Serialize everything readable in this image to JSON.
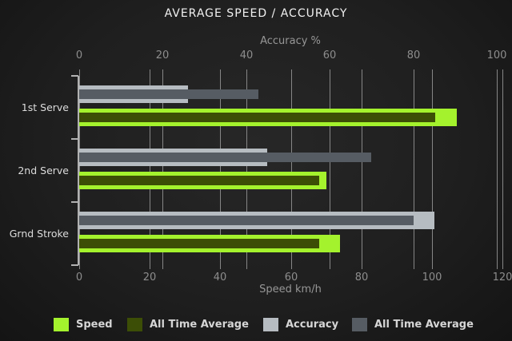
{
  "chart_data": {
    "type": "bar",
    "orientation": "horizontal",
    "title": "AVERAGE SPEED / ACCURACY",
    "categories": [
      "1st Serve",
      "2nd Serve",
      "Grnd Stroke"
    ],
    "axes": {
      "top": {
        "label": "Accuracy %",
        "ticks": [
          0,
          20,
          40,
          60,
          80,
          100
        ],
        "range": [
          0,
          100
        ]
      },
      "bottom": {
        "label": "Speed km/h",
        "ticks": [
          0,
          20,
          40,
          60,
          80,
          100,
          120
        ],
        "range": [
          0,
          120
        ]
      }
    },
    "grid": true,
    "legend_position": "bottom",
    "series": [
      {
        "name": "Speed",
        "axis": "bottom",
        "unit": "km/h",
        "color": "#a4f22d",
        "values": [
          107,
          70,
          74
        ]
      },
      {
        "name": "All Time Average",
        "axis": "bottom",
        "unit": "km/h",
        "color": "#3c4e06",
        "values": [
          101,
          68,
          68
        ]
      },
      {
        "name": "Accuracy",
        "axis": "top",
        "unit": "%",
        "color": "#b6bcc1",
        "values": [
          26,
          45,
          85
        ]
      },
      {
        "name": "All Time Average",
        "axis": "top",
        "unit": "%",
        "color": "#565c63",
        "values": [
          43,
          70,
          80
        ]
      }
    ],
    "colors": {
      "background": "#1e1e1e",
      "gridline": "#868686",
      "axis_line": "#b2b2b2",
      "title_text": "#f1f1f1",
      "tick_text": "#8d8d8d",
      "category_text": "#dcdcdc",
      "legend_text": "#d6d6d6"
    }
  }
}
